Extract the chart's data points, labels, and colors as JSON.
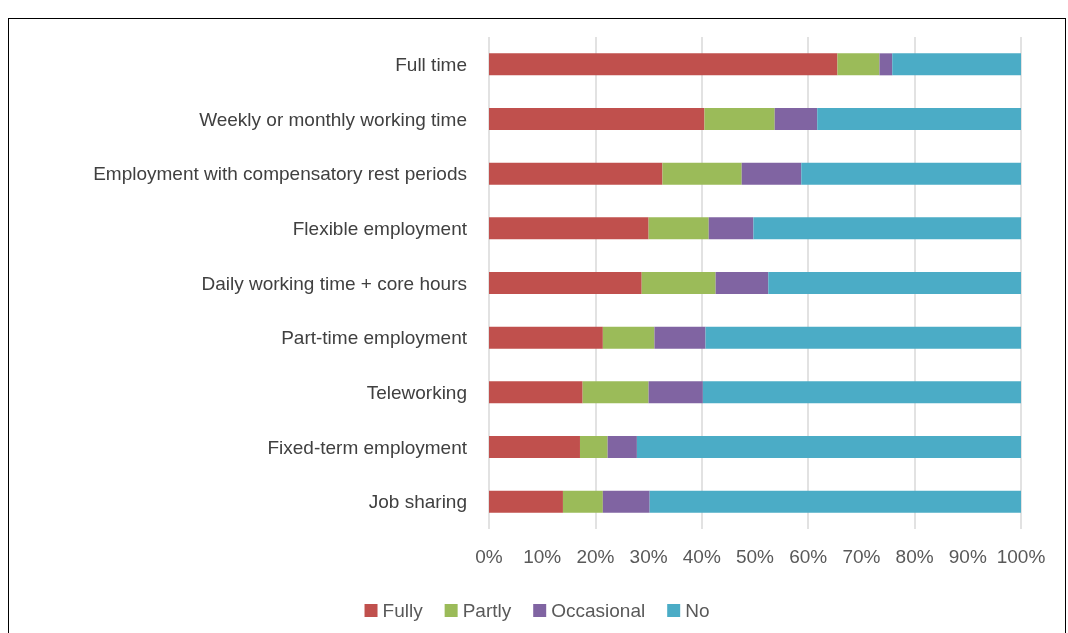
{
  "chart_data": {
    "type": "bar",
    "orientation": "horizontal",
    "stacked": true,
    "categories": [
      "Full time",
      "Weekly or monthly working time",
      "Employment with compensatory rest periods",
      "Flexible employment",
      "Daily working time + core hours",
      "Part-time employment",
      "Teleworking",
      "Fixed-term employment",
      "Job sharing"
    ],
    "series": [
      {
        "name": "Fully",
        "color": "#c0504d",
        "values": [
          65.5,
          40.5,
          32.6,
          30.0,
          28.7,
          21.4,
          17.6,
          17.1,
          13.9
        ]
      },
      {
        "name": "Partly",
        "color": "#9bbb59",
        "values": [
          7.9,
          13.2,
          14.9,
          11.3,
          13.9,
          9.7,
          12.4,
          5.2,
          7.5
        ]
      },
      {
        "name": "Occasional",
        "color": "#8064a2",
        "values": [
          2.4,
          8.0,
          11.2,
          8.4,
          9.9,
          9.6,
          10.2,
          5.5,
          8.8
        ]
      },
      {
        "name": "No",
        "color": "#4bacc6",
        "values": [
          24.2,
          38.3,
          41.3,
          50.3,
          47.5,
          59.3,
          59.8,
          72.2,
          69.8
        ]
      }
    ],
    "xlim": [
      0,
      100
    ],
    "xticks": [
      {
        "value": 0,
        "label": "0%"
      },
      {
        "value": 10,
        "label": "10%"
      },
      {
        "value": 20,
        "label": "20%"
      },
      {
        "value": 30,
        "label": "30%"
      },
      {
        "value": 40,
        "label": "40%"
      },
      {
        "value": 50,
        "label": "50%"
      },
      {
        "value": 60,
        "label": "60%"
      },
      {
        "value": 70,
        "label": "70%"
      },
      {
        "value": 80,
        "label": "80%"
      },
      {
        "value": 90,
        "label": "90%"
      },
      {
        "value": 100,
        "label": "100%"
      }
    ],
    "grid": "x",
    "legend": "bottom"
  }
}
